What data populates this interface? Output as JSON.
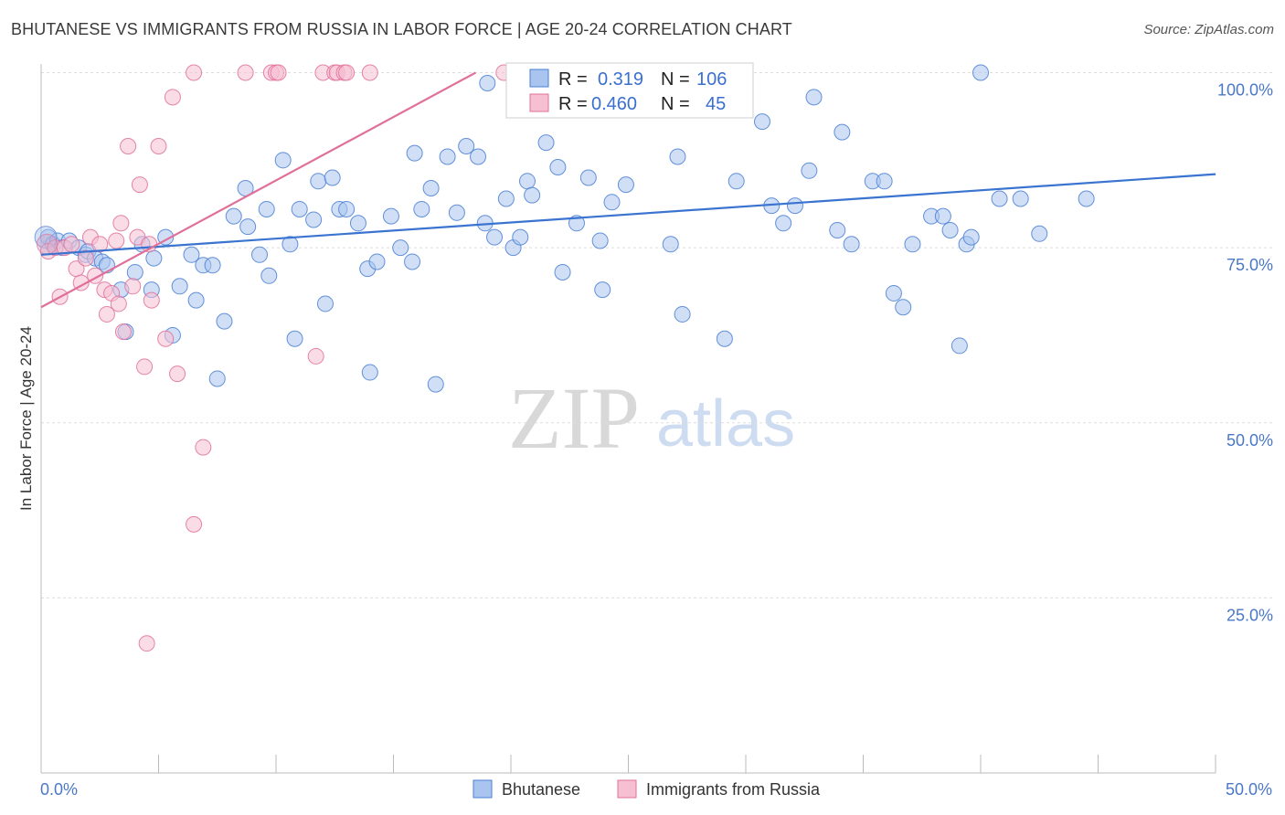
{
  "header": {
    "title": "BHUTANESE VS IMMIGRANTS FROM RUSSIA IN LABOR FORCE | AGE 20-24 CORRELATION CHART",
    "source": "Source: ZipAtlas.com"
  },
  "watermark": {
    "zip": "ZIP",
    "atlas": "atlas"
  },
  "colors": {
    "blue": "#4a7fd4",
    "blue_fill": "#a9c4ee",
    "pink": "#e0709a",
    "pink_fill": "#f6bfd2",
    "axis_label": "#4a78c8"
  },
  "legend": {
    "r_label": "R =",
    "n_label": "N =",
    "series": [
      {
        "r": "0.319",
        "n": "106"
      },
      {
        "r": "0.460",
        "n": "45"
      }
    ]
  },
  "bottom_legend": [
    "Bhutanese",
    "Immigrants from Russia"
  ],
  "chart_data": {
    "type": "scatter",
    "title": "BHUTANESE VS IMMIGRANTS FROM RUSSIA IN LABOR FORCE | AGE 20-24 CORRELATION CHART",
    "xlabel": "",
    "ylabel": "In Labor Force | Age 20-24",
    "xlim": [
      0,
      50
    ],
    "ylim": [
      0,
      105
    ],
    "x_tick_labels": [
      "0.0%",
      "50.0%"
    ],
    "y_ticks": [
      25,
      50,
      75,
      100
    ],
    "y_tick_labels": [
      "25.0%",
      "50.0%",
      "75.0%",
      "100.0%"
    ],
    "grid": true,
    "series": [
      {
        "name": "Bhutanese",
        "trend": {
          "x0": 0,
          "y0": 74.0,
          "x1": 50,
          "y1": 85.5
        },
        "points": [
          [
            0.3,
            76.5
          ],
          [
            0.5,
            75.5
          ],
          [
            0.7,
            76
          ],
          [
            0.9,
            75
          ],
          [
            1.2,
            76
          ],
          [
            1.6,
            75
          ],
          [
            1.9,
            74
          ],
          [
            2.0,
            74.5
          ],
          [
            2.3,
            73.5
          ],
          [
            2.6,
            73
          ],
          [
            2.8,
            72.5
          ],
          [
            3.4,
            69
          ],
          [
            3.6,
            63
          ],
          [
            4.0,
            71.5
          ],
          [
            4.3,
            75.5
          ],
          [
            4.8,
            73.5
          ],
          [
            4.7,
            69
          ],
          [
            5.3,
            76.5
          ],
          [
            5.6,
            62.5
          ],
          [
            5.9,
            69.5
          ],
          [
            6.4,
            74
          ],
          [
            6.6,
            67.5
          ],
          [
            6.9,
            72.5
          ],
          [
            7.3,
            72.5
          ],
          [
            7.5,
            56.3
          ],
          [
            7.8,
            64.5
          ],
          [
            8.2,
            79.5
          ],
          [
            8.7,
            83.5
          ],
          [
            8.8,
            78
          ],
          [
            9.3,
            74
          ],
          [
            9.6,
            80.5
          ],
          [
            9.7,
            71
          ],
          [
            10.3,
            87.5
          ],
          [
            10.6,
            75.5
          ],
          [
            10.8,
            62
          ],
          [
            11.0,
            80.5
          ],
          [
            11.6,
            79
          ],
          [
            11.8,
            84.5
          ],
          [
            12.1,
            67
          ],
          [
            12.4,
            85
          ],
          [
            12.7,
            80.5
          ],
          [
            13.0,
            80.5
          ],
          [
            13.5,
            78.5
          ],
          [
            13.9,
            72
          ],
          [
            14.0,
            57.2
          ],
          [
            14.3,
            73
          ],
          [
            14.9,
            79.5
          ],
          [
            15.3,
            75
          ],
          [
            15.8,
            73
          ],
          [
            15.9,
            88.5
          ],
          [
            16.2,
            80.5
          ],
          [
            16.6,
            83.5
          ],
          [
            16.8,
            55.5
          ],
          [
            17.3,
            88
          ],
          [
            17.7,
            80
          ],
          [
            18.1,
            89.5
          ],
          [
            18.6,
            88
          ],
          [
            18.9,
            78.5
          ],
          [
            19.0,
            98.5
          ],
          [
            19.3,
            76.5
          ],
          [
            19.8,
            82
          ],
          [
            20.1,
            75
          ],
          [
            20.4,
            76.5
          ],
          [
            20.7,
            84.5
          ],
          [
            20.9,
            82.5
          ],
          [
            21.5,
            90
          ],
          [
            22.0,
            86.5
          ],
          [
            22.2,
            71.5
          ],
          [
            22.8,
            78.5
          ],
          [
            23.3,
            85
          ],
          [
            23.8,
            76
          ],
          [
            23.9,
            69
          ],
          [
            24.3,
            81.5
          ],
          [
            24.9,
            84
          ],
          [
            25.4,
            100
          ],
          [
            25.7,
            99.5
          ],
          [
            26.8,
            75.5
          ],
          [
            27.1,
            88
          ],
          [
            27.3,
            65.5
          ],
          [
            29.1,
            62
          ],
          [
            29.6,
            84.5
          ],
          [
            30.7,
            93
          ],
          [
            31.1,
            81
          ],
          [
            31.6,
            78.5
          ],
          [
            32.1,
            81
          ],
          [
            32.7,
            86
          ],
          [
            32.9,
            96.5
          ],
          [
            33.9,
            77.5
          ],
          [
            34.1,
            91.5
          ],
          [
            34.5,
            75.5
          ],
          [
            35.4,
            84.5
          ],
          [
            35.9,
            84.5
          ],
          [
            36.3,
            68.5
          ],
          [
            36.7,
            66.5
          ],
          [
            37.1,
            75.5
          ],
          [
            37.9,
            79.5
          ],
          [
            38.4,
            79.5
          ],
          [
            38.7,
            77.5
          ],
          [
            39.1,
            61
          ],
          [
            39.4,
            75.5
          ],
          [
            39.6,
            76.5
          ],
          [
            40.0,
            100
          ],
          [
            40.8,
            82
          ],
          [
            41.7,
            82
          ],
          [
            42.5,
            77
          ],
          [
            44.5,
            82
          ]
        ]
      },
      {
        "name": "Immigrants from Russia",
        "trend": {
          "x0": 0,
          "y0": 66.5,
          "x1": 18.5,
          "y1": 100
        },
        "points": [
          [
            0.3,
            74.5
          ],
          [
            0.6,
            75
          ],
          [
            0.8,
            68
          ],
          [
            1.0,
            75
          ],
          [
            1.3,
            75.5
          ],
          [
            1.5,
            72
          ],
          [
            1.7,
            70
          ],
          [
            1.9,
            73.5
          ],
          [
            2.1,
            76.5
          ],
          [
            2.3,
            71
          ],
          [
            2.5,
            75.5
          ],
          [
            2.7,
            69
          ],
          [
            2.8,
            65.5
          ],
          [
            3.0,
            68.5
          ],
          [
            3.2,
            76
          ],
          [
            3.3,
            67
          ],
          [
            3.4,
            78.5
          ],
          [
            3.5,
            63
          ],
          [
            3.7,
            89.5
          ],
          [
            3.9,
            69.5
          ],
          [
            4.1,
            76.5
          ],
          [
            4.2,
            84
          ],
          [
            4.4,
            58
          ],
          [
            4.6,
            75.5
          ],
          [
            4.7,
            67.5
          ],
          [
            5.0,
            89.5
          ],
          [
            5.3,
            62
          ],
          [
            5.6,
            96.5
          ],
          [
            5.8,
            57
          ],
          [
            6.5,
            35.5
          ],
          [
            6.9,
            46.5
          ],
          [
            4.5,
            18.5
          ],
          [
            6.5,
            100
          ],
          [
            8.7,
            100
          ],
          [
            9.8,
            100
          ],
          [
            10.0,
            100
          ],
          [
            10.1,
            100
          ],
          [
            11.7,
            59.5
          ],
          [
            12.0,
            100
          ],
          [
            12.5,
            100
          ],
          [
            12.6,
            100
          ],
          [
            12.9,
            100
          ],
          [
            13.0,
            100
          ],
          [
            14.0,
            100
          ],
          [
            19.7,
            100
          ]
        ]
      }
    ]
  }
}
